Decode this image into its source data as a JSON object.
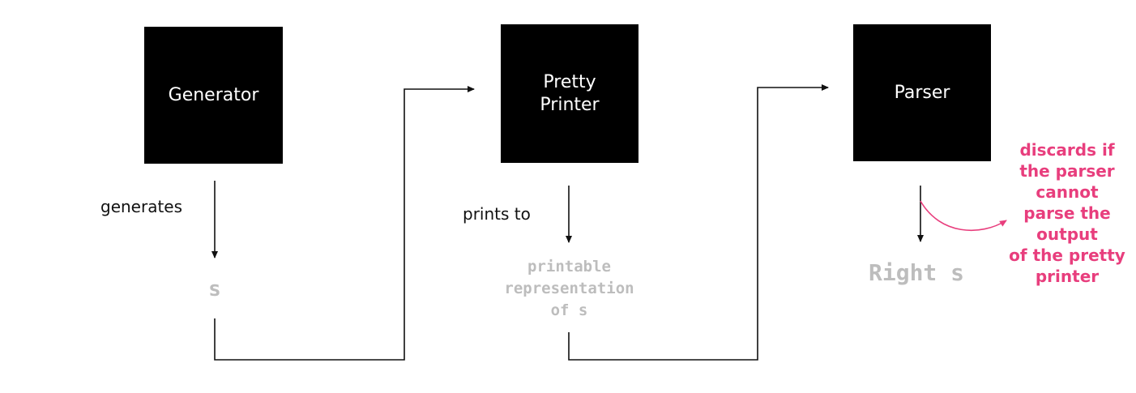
{
  "boxes": {
    "generator": "Generator",
    "pretty_printer": "Pretty\nPrinter",
    "parser": "Parser"
  },
  "edges": {
    "generates": "generates",
    "prints_to": "prints to"
  },
  "values": {
    "s": "s",
    "printable": "printable\nrepresentation\nof s",
    "right_s": "Right s"
  },
  "annotation": {
    "discard_note": "discards if\nthe parser\ncannot\nparse the\noutput\nof the pretty\nprinter"
  },
  "colors": {
    "box_fill": "#000000",
    "box_text": "#ffffff",
    "value_text": "#bdbdbd",
    "annotation": "#e83e7d"
  }
}
